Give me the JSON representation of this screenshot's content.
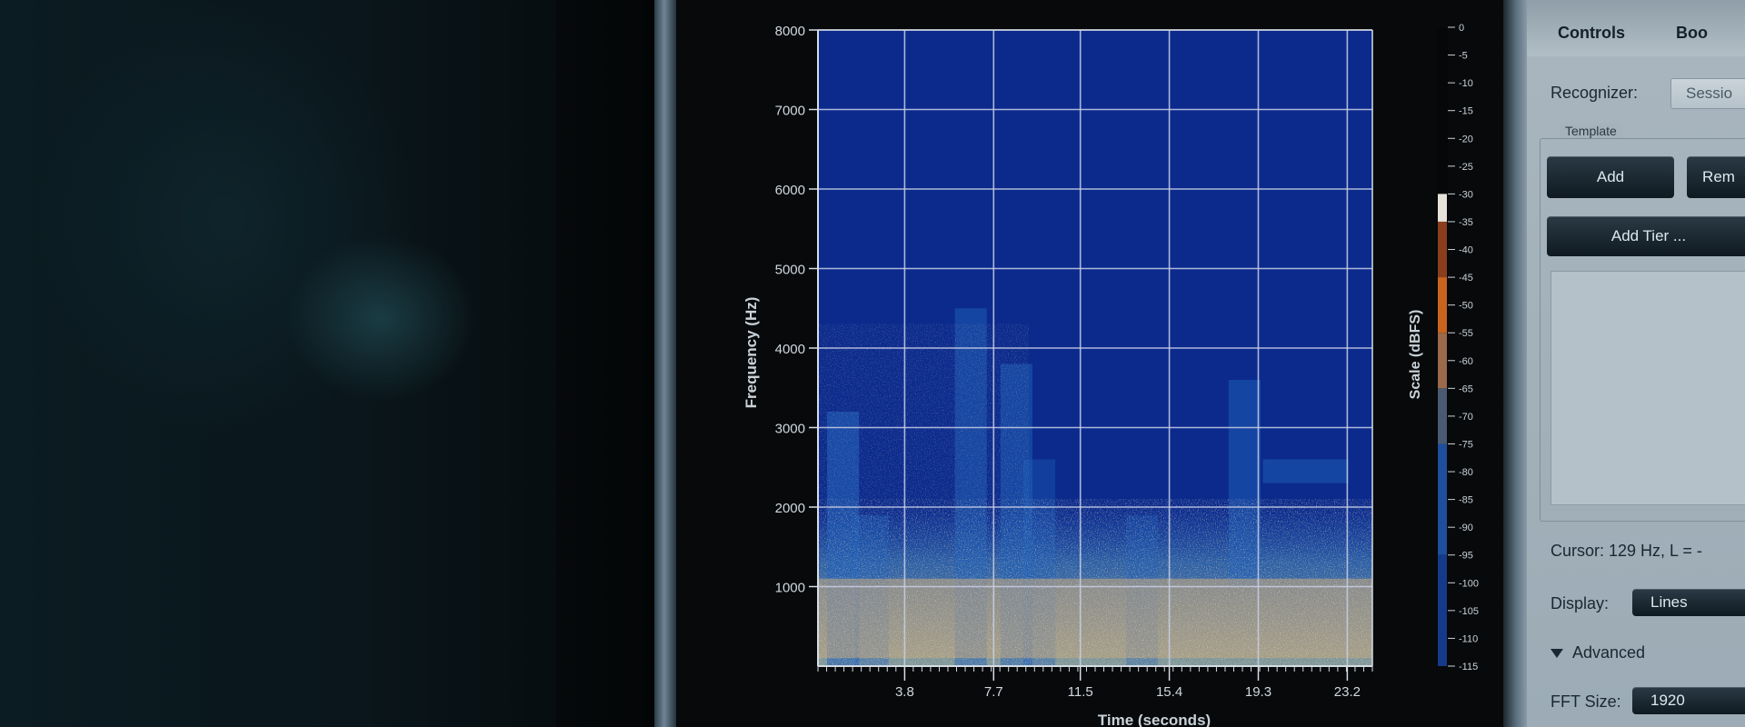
{
  "chart_data": {
    "type": "heatmap",
    "xlabel": "Time (seconds)",
    "ylabel": "Frequency (Hz)",
    "x_ticks": [
      "3.8",
      "7.7",
      "11.5",
      "15.4",
      "19.3",
      "23.2"
    ],
    "y_ticks": [
      "1000",
      "2000",
      "3000",
      "4000",
      "5000",
      "6000",
      "7000",
      "8000"
    ],
    "xlim": [
      0,
      24.3
    ],
    "ylim": [
      0,
      8000
    ],
    "grid": true,
    "colorbar": {
      "label": "Scale (dBFS)",
      "ticks": [
        "0",
        "-5",
        "-10",
        "-15",
        "-20",
        "-25",
        "-30",
        "-35",
        "-40",
        "-45",
        "-50",
        "-55",
        "-60",
        "-65",
        "-70",
        "-75",
        "-80",
        "-85",
        "-90",
        "-95",
        "-100",
        "-105",
        "-110",
        "-115"
      ],
      "range": [
        -115,
        0
      ]
    },
    "colors": {
      "background": "#0b2a8c",
      "low_energy": "#1f5fb8",
      "mid_energy": "#c8a87a",
      "high_energy": "#e0c9a0"
    }
  },
  "panel": {
    "tabs": [
      "Controls",
      "Boo"
    ],
    "recognizer_label": "Recognizer:",
    "recognizer_value": "Sessio",
    "template_label": "Template",
    "add_button": "Add",
    "remove_button": "Rem",
    "add_tier_button": "Add Tier ...",
    "cursor_text": "Cursor: 129 Hz, L = -",
    "display_label": "Display:",
    "display_value": "Lines",
    "advanced_label": "Advanced",
    "fft_label": "FFT Size:",
    "fft_value": "1920"
  }
}
